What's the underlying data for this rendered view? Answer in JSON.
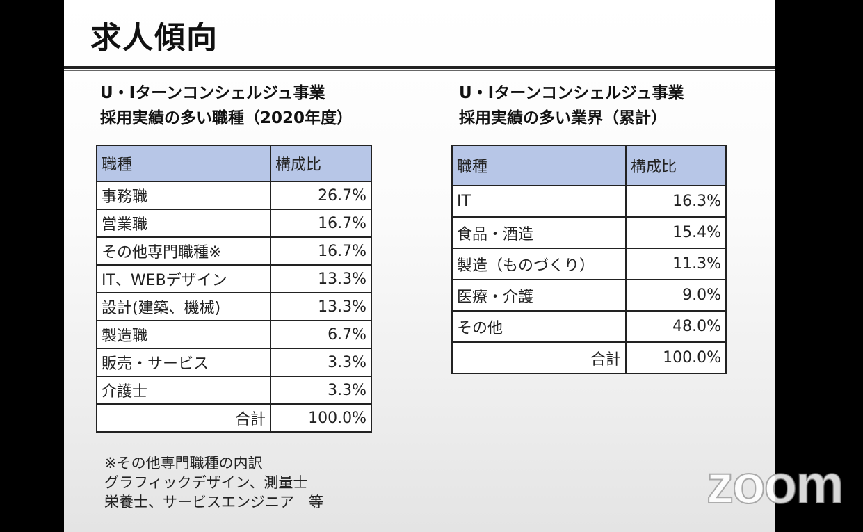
{
  "slide": {
    "title": "求人傾向"
  },
  "left_section": {
    "heading_line1": "U・Iターンコンシェルジュ事業",
    "heading_line2": "採用実績の多い職種（2020年度）",
    "table": {
      "header": [
        "職種",
        "構成比"
      ],
      "rows": [
        {
          "label": "事務職",
          "value": "26.7%"
        },
        {
          "label": "営業職",
          "value": "16.7%"
        },
        {
          "label": "その他専門職種※",
          "value": "16.7%"
        },
        {
          "label": "IT、WEBデザイン",
          "value": "13.3%"
        },
        {
          "label": "設計(建築、機械)",
          "value": "13.3%"
        },
        {
          "label": "製造職",
          "value": "6.7%"
        },
        {
          "label": "販売・サービス",
          "value": "3.3%"
        },
        {
          "label": "介護士",
          "value": "3.3%"
        }
      ],
      "total_label": "合計",
      "total_value": "100.0%"
    },
    "footnote": [
      "※その他専門職種の内訳",
      "グラフィックデザイン、測量士",
      "栄養士、サービスエンジニア　等"
    ]
  },
  "right_section": {
    "heading_line1": "U・Iターンコンシェルジュ事業",
    "heading_line2": "採用実績の多い業界（累計）",
    "table": {
      "header": [
        "職種",
        "構成比"
      ],
      "rows": [
        {
          "label": "IT",
          "value": "16.3%"
        },
        {
          "label": "食品・酒造",
          "value": "15.4%"
        },
        {
          "label": "製造（ものづくり）",
          "value": "11.3%"
        },
        {
          "label": "医療・介護",
          "value": "9.0%"
        },
        {
          "label": "その他",
          "value": "48.0%"
        }
      ],
      "total_label": "合計",
      "total_value": "100.0%"
    }
  },
  "overlay": {
    "logo_text": "zoom"
  }
}
